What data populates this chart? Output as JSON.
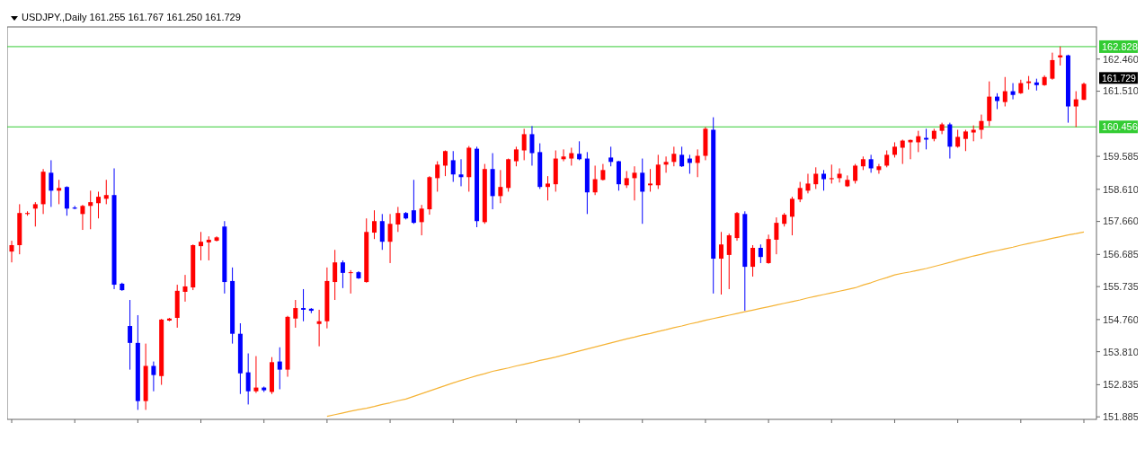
{
  "chart_data": {
    "type": "candlestick",
    "title": "USDJPY.,Daily 161.255 161.767 161.250 161.729",
    "categories": [
      null,
      null,
      null,
      null,
      null,
      null,
      null,
      null,
      null,
      null,
      null,
      null,
      null,
      null,
      null,
      null,
      null,
      null,
      null,
      null,
      null,
      null,
      null,
      null,
      null,
      null,
      null,
      null,
      null,
      null,
      null,
      null,
      null,
      null,
      null,
      null,
      null,
      null,
      null,
      null,
      null,
      null,
      null,
      null,
      null,
      null,
      null,
      null,
      null,
      null,
      null,
      null,
      null,
      null,
      null,
      null,
      null,
      null,
      null,
      null,
      null,
      null,
      null,
      null,
      null,
      null,
      null,
      null,
      null,
      null,
      null,
      null,
      null,
      null,
      null,
      null,
      null,
      null,
      null,
      null,
      null,
      null,
      null,
      null,
      null,
      null,
      null,
      null,
      null,
      null,
      null,
      null,
      null,
      null,
      null,
      null,
      null,
      null,
      null,
      null,
      null,
      null,
      null,
      null,
      null,
      null,
      null,
      null,
      null,
      null,
      null,
      null,
      null,
      null,
      null,
      null,
      null,
      null,
      null,
      null,
      null,
      null,
      null,
      null,
      null,
      null,
      null,
      null,
      null,
      null,
      null,
      null,
      null,
      null,
      null,
      null,
      null
    ],
    "ohlc": [
      [
        156.77,
        157.09,
        156.45,
        156.96
      ],
      [
        156.96,
        158.17,
        156.69,
        157.91
      ],
      [
        157.88,
        157.96,
        157.83,
        157.91
      ],
      [
        158.04,
        158.23,
        157.51,
        158.17
      ],
      [
        158.17,
        159.21,
        157.88,
        159.13
      ],
      [
        159.1,
        159.47,
        158.09,
        158.57
      ],
      [
        158.57,
        158.89,
        158.17,
        158.65
      ],
      [
        158.68,
        158.7,
        157.83,
        158.04
      ],
      [
        158.07,
        158.12,
        158.02,
        158.04
      ],
      [
        157.88,
        158.15,
        157.41,
        158.12
      ],
      [
        158.12,
        158.57,
        157.43,
        158.23
      ],
      [
        158.2,
        158.54,
        157.75,
        158.39
      ],
      [
        158.33,
        158.89,
        158.17,
        158.44
      ],
      [
        158.44,
        159.23,
        155.66,
        155.79
      ],
      [
        155.82,
        155.85,
        155.61,
        155.63
      ],
      [
        154.57,
        155.34,
        153.28,
        154.07
      ],
      [
        154.07,
        154.89,
        152.09,
        152.35
      ],
      [
        152.35,
        154.05,
        152.09,
        153.39
      ],
      [
        153.39,
        153.52,
        152.64,
        153.12
      ],
      [
        153.09,
        154.78,
        152.83,
        154.76
      ],
      [
        154.73,
        154.81,
        154.71,
        154.79
      ],
      [
        154.81,
        155.79,
        154.52,
        155.61
      ],
      [
        155.58,
        156.08,
        155.29,
        155.74
      ],
      [
        155.71,
        156.98,
        155.63,
        156.96
      ],
      [
        156.93,
        157.35,
        156.51,
        157.06
      ],
      [
        157.04,
        157.22,
        156.51,
        157.12
      ],
      [
        157.09,
        157.22,
        157.07,
        157.19
      ],
      [
        157.51,
        157.67,
        155.53,
        155.87
      ],
      [
        155.9,
        156.3,
        154.05,
        154.34
      ],
      [
        154.34,
        154.65,
        152.56,
        153.17
      ],
      [
        153.2,
        153.76,
        152.25,
        152.64
      ],
      [
        152.64,
        153.68,
        152.59,
        152.75
      ],
      [
        152.75,
        152.78,
        152.62,
        152.67
      ],
      [
        152.62,
        153.65,
        152.56,
        153.5
      ],
      [
        153.52,
        153.94,
        152.7,
        153.28
      ],
      [
        153.28,
        154.87,
        153.07,
        154.84
      ],
      [
        154.79,
        155.34,
        154.52,
        155.1
      ],
      [
        155.1,
        155.66,
        154.71,
        155.05
      ],
      [
        155.08,
        155.1,
        154.95,
        155.02
      ],
      [
        154.63,
        155.05,
        153.97,
        154.71
      ],
      [
        154.71,
        156.3,
        154.5,
        155.9
      ],
      [
        155.87,
        156.82,
        155.34,
        156.45
      ],
      [
        156.45,
        156.51,
        155.69,
        156.14
      ],
      [
        156.14,
        156.22,
        155.53,
        156.16
      ],
      [
        156.16,
        156.19,
        155.96,
        155.98
      ],
      [
        155.87,
        157.75,
        155.85,
        157.35
      ],
      [
        157.33,
        157.99,
        157.14,
        157.67
      ],
      [
        157.67,
        157.88,
        156.82,
        157.06
      ],
      [
        157.06,
        157.88,
        156.43,
        157.59
      ],
      [
        157.57,
        158.09,
        157.35,
        157.91
      ],
      [
        157.91,
        157.94,
        157.72,
        157.75
      ],
      [
        157.99,
        158.89,
        157.59,
        157.62
      ],
      [
        157.64,
        158.15,
        157.25,
        158.04
      ],
      [
        158.02,
        159.0,
        157.86,
        158.97
      ],
      [
        158.94,
        159.44,
        158.54,
        159.34
      ],
      [
        159.31,
        159.76,
        159.0,
        159.74
      ],
      [
        159.47,
        159.74,
        158.83,
        159.05
      ],
      [
        159.05,
        159.5,
        158.7,
        158.97
      ],
      [
        158.97,
        159.89,
        158.54,
        159.84
      ],
      [
        159.81,
        159.87,
        157.49,
        157.67
      ],
      [
        157.64,
        159.36,
        157.59,
        159.21
      ],
      [
        159.21,
        159.68,
        158.02,
        158.41
      ],
      [
        158.41,
        159.18,
        158.2,
        158.68
      ],
      [
        158.65,
        159.52,
        158.54,
        159.5
      ],
      [
        159.44,
        159.87,
        159.29,
        159.79
      ],
      [
        159.76,
        160.4,
        159.47,
        160.24
      ],
      [
        160.24,
        160.48,
        159.31,
        159.68
      ],
      [
        159.71,
        159.97,
        158.62,
        158.68
      ],
      [
        158.68,
        159.0,
        158.28,
        158.78
      ],
      [
        158.76,
        159.76,
        158.54,
        159.52
      ],
      [
        159.5,
        159.79,
        159.44,
        159.58
      ],
      [
        159.52,
        159.84,
        159.31,
        159.68
      ],
      [
        159.66,
        160.03,
        159.47,
        159.5
      ],
      [
        159.52,
        159.71,
        157.88,
        158.52
      ],
      [
        158.52,
        159.31,
        158.44,
        158.91
      ],
      [
        158.89,
        159.36,
        158.87,
        159.18
      ],
      [
        159.55,
        159.87,
        159.29,
        159.42
      ],
      [
        159.44,
        159.45,
        158.57,
        158.76
      ],
      [
        158.73,
        159.15,
        158.65,
        158.94
      ],
      [
        158.94,
        159.29,
        158.28,
        159.1
      ],
      [
        159.1,
        159.52,
        157.59,
        158.54
      ],
      [
        158.73,
        159.21,
        158.54,
        158.78
      ],
      [
        158.73,
        159.63,
        158.62,
        159.34
      ],
      [
        159.34,
        159.58,
        159.1,
        159.42
      ],
      [
        159.42,
        159.87,
        159.29,
        159.66
      ],
      [
        159.63,
        159.87,
        159.27,
        159.29
      ],
      [
        159.52,
        159.63,
        159.07,
        159.39
      ],
      [
        159.39,
        159.79,
        158.97,
        159.6
      ],
      [
        159.6,
        160.45,
        159.47,
        160.4
      ],
      [
        160.37,
        160.74,
        155.53,
        156.56
      ],
      [
        156.56,
        157.35,
        155.5,
        156.98
      ],
      [
        156.67,
        157.3,
        155.66,
        157.25
      ],
      [
        157.17,
        157.94,
        157.09,
        157.91
      ],
      [
        157.88,
        157.96,
        155.02,
        156.32
      ],
      [
        156.32,
        156.96,
        156.03,
        156.88
      ],
      [
        156.88,
        156.98,
        156.43,
        156.61
      ],
      [
        156.43,
        157.27,
        156.41,
        157.14
      ],
      [
        157.12,
        157.78,
        156.69,
        157.62
      ],
      [
        157.59,
        157.91,
        157.51,
        157.86
      ],
      [
        157.8,
        158.39,
        157.25,
        158.33
      ],
      [
        158.31,
        158.83,
        158.23,
        158.65
      ],
      [
        158.57,
        159.07,
        158.49,
        158.78
      ],
      [
        158.76,
        159.26,
        158.62,
        159.07
      ],
      [
        159.07,
        159.18,
        158.57,
        158.91
      ],
      [
        158.91,
        159.34,
        158.78,
        158.94
      ],
      [
        158.94,
        159.23,
        158.81,
        159.07
      ],
      [
        158.7,
        159.02,
        158.68,
        158.89
      ],
      [
        158.86,
        159.36,
        158.78,
        159.31
      ],
      [
        159.29,
        159.58,
        159.18,
        159.5
      ],
      [
        159.5,
        159.63,
        159.1,
        159.23
      ],
      [
        159.18,
        159.36,
        159.07,
        159.29
      ],
      [
        159.31,
        159.76,
        159.26,
        159.63
      ],
      [
        159.63,
        160.0,
        159.55,
        159.87
      ],
      [
        159.84,
        160.08,
        159.36,
        160.05
      ],
      [
        160.0,
        160.08,
        159.5,
        160.07
      ],
      [
        160.0,
        160.34,
        159.71,
        160.18
      ],
      [
        160.13,
        160.4,
        159.79,
        160.08
      ],
      [
        160.1,
        160.4,
        160.03,
        160.34
      ],
      [
        160.34,
        160.58,
        160.24,
        160.53
      ],
      [
        160.53,
        160.58,
        159.52,
        159.87
      ],
      [
        159.87,
        160.37,
        159.84,
        160.16
      ],
      [
        160.1,
        160.37,
        159.74,
        160.32
      ],
      [
        160.29,
        160.5,
        160.03,
        160.37
      ],
      [
        160.37,
        160.82,
        160.1,
        160.63
      ],
      [
        160.63,
        161.8,
        160.48,
        161.35
      ],
      [
        161.35,
        161.45,
        160.98,
        161.22
      ],
      [
        161.19,
        161.93,
        161.06,
        161.51
      ],
      [
        161.51,
        161.75,
        161.27,
        161.4
      ],
      [
        161.45,
        161.85,
        161.43,
        161.75
      ],
      [
        161.75,
        161.96,
        161.56,
        161.8
      ],
      [
        161.77,
        161.88,
        161.53,
        161.69
      ],
      [
        161.69,
        161.98,
        161.67,
        161.93
      ],
      [
        161.88,
        162.65,
        161.85,
        162.43
      ],
      [
        162.51,
        162.83,
        162.27,
        162.57
      ],
      [
        162.57,
        162.59,
        160.58,
        161.06
      ],
      [
        161.06,
        161.51,
        160.45,
        161.27
      ],
      [
        161.255,
        161.767,
        161.25,
        161.729
      ]
    ],
    "colors": [
      "#ff0000",
      "#ff0000",
      "#ff0000",
      "#ff0000",
      "#ff0000",
      "#0000ff",
      "#ff0000",
      "#0000ff",
      "#0000ff",
      "#ff0000",
      "#ff0000",
      "#ff0000",
      "#ff0000",
      "#0000ff",
      "#0000ff",
      "#0000ff",
      "#0000ff",
      "#ff0000",
      "#0000ff",
      "#ff0000",
      "#ff0000",
      "#ff0000",
      "#ff0000",
      "#ff0000",
      "#ff0000",
      "#ff0000",
      "#ff0000",
      "#0000ff",
      "#0000ff",
      "#0000ff",
      "#0000ff",
      "#ff0000",
      "#0000ff",
      "#ff0000",
      "#0000ff",
      "#ff0000",
      "#ff0000",
      "#0000ff",
      "#0000ff",
      "#ff0000",
      "#ff0000",
      "#ff0000",
      "#0000ff",
      "#ff0000",
      "#0000ff",
      "#ff0000",
      "#ff0000",
      "#0000ff",
      "#ff0000",
      "#ff0000",
      "#0000ff",
      "#0000ff",
      "#ff0000",
      "#ff0000",
      "#ff0000",
      "#ff0000",
      "#0000ff",
      "#0000ff",
      "#ff0000",
      "#0000ff",
      "#ff0000",
      "#0000ff",
      "#ff0000",
      "#ff0000",
      "#ff0000",
      "#ff0000",
      "#0000ff",
      "#0000ff",
      "#ff0000",
      "#ff0000",
      "#ff0000",
      "#ff0000",
      "#0000ff",
      "#0000ff",
      "#ff0000",
      "#ff0000",
      "#0000ff",
      "#0000ff",
      "#ff0000",
      "#ff0000",
      "#0000ff",
      "#ff0000",
      "#ff0000",
      "#ff0000",
      "#ff0000",
      "#0000ff",
      "#0000ff",
      "#ff0000",
      "#ff0000",
      "#0000ff",
      "#ff0000",
      "#ff0000",
      "#ff0000",
      "#0000ff",
      "#ff0000",
      "#0000ff",
      "#ff0000",
      "#ff0000",
      "#ff0000",
      "#ff0000",
      "#ff0000",
      "#ff0000",
      "#ff0000",
      "#0000ff",
      "#ff0000",
      "#ff0000",
      "#ff0000",
      "#ff0000",
      "#ff0000",
      "#0000ff",
      "#ff0000",
      "#ff0000",
      "#ff0000",
      "#ff0000",
      "#ff0000",
      "#ff0000",
      "#0000ff",
      "#ff0000",
      "#ff0000",
      "#0000ff",
      "#ff0000",
      "#ff0000",
      "#ff0000",
      "#ff0000",
      "#ff0000",
      "#0000ff",
      "#ff0000",
      "#0000ff",
      "#ff0000",
      "#ff0000",
      "#0000ff",
      "#ff0000",
      "#ff0000",
      "#ff0000",
      "#0000ff",
      "#ff0000",
      "#ff0000"
    ],
    "series": [
      {
        "type": "line",
        "color": "#f5b335",
        "values": [
          null,
          null,
          null,
          null,
          null,
          null,
          null,
          null,
          null,
          null,
          null,
          null,
          null,
          null,
          null,
          null,
          null,
          null,
          null,
          null,
          null,
          null,
          null,
          null,
          null,
          null,
          null,
          null,
          null,
          null,
          null,
          null,
          null,
          null,
          null,
          null,
          null,
          null,
          null,
          null,
          151.9,
          151.95,
          152.0,
          152.05,
          152.1,
          152.14,
          152.19,
          152.25,
          152.3,
          152.36,
          152.41,
          152.49,
          152.57,
          152.65,
          152.73,
          152.81,
          152.89,
          152.96,
          153.03,
          153.1,
          153.16,
          153.23,
          153.28,
          153.33,
          153.39,
          153.44,
          153.49,
          153.55,
          153.6,
          153.65,
          153.71,
          153.77,
          153.83,
          153.89,
          153.95,
          154.01,
          154.07,
          154.13,
          154.19,
          154.24,
          154.3,
          154.35,
          154.41,
          154.46,
          154.52,
          154.57,
          154.63,
          154.68,
          154.74,
          154.79,
          154.84,
          154.89,
          154.94,
          154.99,
          155.04,
          155.09,
          155.14,
          155.19,
          155.24,
          155.29,
          155.34,
          155.4,
          155.45,
          155.5,
          155.55,
          155.6,
          155.65,
          155.7,
          155.78,
          155.85,
          155.93,
          156.0,
          156.08,
          156.13,
          156.17,
          156.22,
          156.27,
          156.33,
          156.39,
          156.45,
          156.52,
          156.58,
          156.64,
          156.69,
          156.75,
          156.8,
          156.85,
          156.9,
          156.96,
          157.01,
          157.06,
          157.11,
          157.16,
          157.21,
          157.26,
          157.3,
          157.35
        ]
      }
    ],
    "ylim": [
      151.81,
      163.41
    ],
    "yticks": [
      {
        "value": 162.46,
        "label": "162.460"
      },
      {
        "value": 161.51,
        "label": "161.510"
      },
      {
        "value": 159.585,
        "label": "159.585"
      },
      {
        "value": 158.61,
        "label": "158.610"
      },
      {
        "value": 157.66,
        "label": "157.660"
      },
      {
        "value": 156.685,
        "label": "156.685"
      },
      {
        "value": 155.735,
        "label": "155.735"
      },
      {
        "value": 154.76,
        "label": "154.760"
      },
      {
        "value": 153.81,
        "label": "153.810"
      },
      {
        "value": 152.835,
        "label": "152.835"
      },
      {
        "value": 151.885,
        "label": "151.885"
      }
    ],
    "tick_labels": "y",
    "ref_lines": [
      {
        "axis": "y",
        "value": 162.828,
        "label": "162.828",
        "color": "#33cc33"
      },
      {
        "axis": "y",
        "value": 160.456,
        "label": "160.456",
        "color": "#33cc33"
      }
    ],
    "annotations": [
      "161.729"
    ]
  }
}
